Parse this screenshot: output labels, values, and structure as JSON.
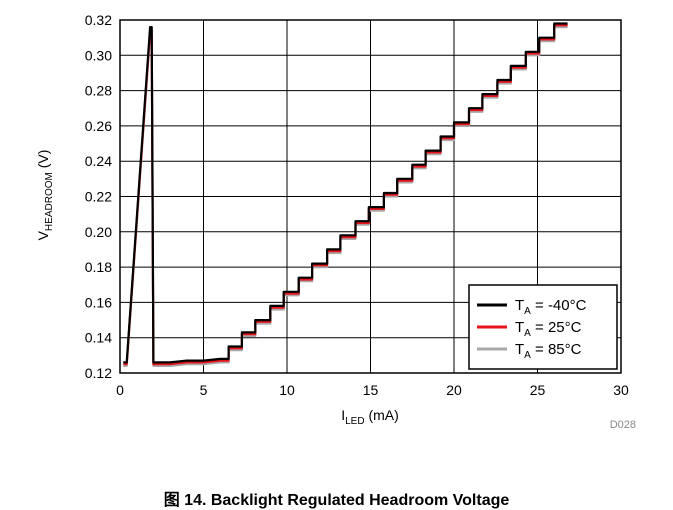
{
  "caption": "图 14. Backlight Regulated Headroom Voltage",
  "figure_id": "D028",
  "colors": {
    "axis": "#000000",
    "grid": "#000000",
    "series_-40": "#000000",
    "series_25": "#e8141c",
    "series_85": "#a8a8a8"
  },
  "chart_data": {
    "type": "line",
    "title": "",
    "xlabel": {
      "main": "I",
      "sub": "LED",
      "unit": " (mA)"
    },
    "ylabel": {
      "main": "V",
      "sub": "HEADROOM",
      "unit": " (V)"
    },
    "xlim": [
      0,
      30
    ],
    "ylim": [
      0.12,
      0.32
    ],
    "x_ticks": [
      "0",
      "5",
      "10",
      "15",
      "20",
      "25",
      "30"
    ],
    "y_ticks": [
      "0.12",
      "0.14",
      "0.16",
      "0.18",
      "0.20",
      "0.22",
      "0.24",
      "0.26",
      "0.28",
      "0.30",
      "0.32"
    ],
    "grid": true,
    "legend_position": "bottom-right",
    "legend": [
      {
        "prefix": "T",
        "sub": "A",
        "suffix": " = -40°C",
        "color": "#000000"
      },
      {
        "prefix": "T",
        "sub": "A",
        "suffix": " = 25°C",
        "color": "#e8141c"
      },
      {
        "prefix": "T",
        "sub": "A",
        "suffix": " = 85°C",
        "color": "#a8a8a8"
      }
    ],
    "series": [
      {
        "name": "TA = -40°C",
        "color": "#000000",
        "points": [
          [
            0.2,
            0.126
          ],
          [
            0.4,
            0.126
          ],
          [
            1.8,
            0.316
          ],
          [
            1.9,
            0.316
          ],
          [
            2.0,
            0.126
          ],
          [
            3.0,
            0.126
          ],
          [
            4.0,
            0.127
          ],
          [
            5.0,
            0.127
          ],
          [
            6.0,
            0.128
          ],
          [
            6.5,
            0.128
          ],
          [
            6.5,
            0.135
          ],
          [
            7.3,
            0.135
          ],
          [
            7.3,
            0.143
          ],
          [
            8.1,
            0.143
          ],
          [
            8.1,
            0.15
          ],
          [
            9.0,
            0.15
          ],
          [
            9.0,
            0.158
          ],
          [
            9.8,
            0.158
          ],
          [
            9.8,
            0.166
          ],
          [
            10.7,
            0.166
          ],
          [
            10.7,
            0.174
          ],
          [
            11.5,
            0.174
          ],
          [
            11.5,
            0.182
          ],
          [
            12.4,
            0.182
          ],
          [
            12.4,
            0.19
          ],
          [
            13.2,
            0.19
          ],
          [
            13.2,
            0.198
          ],
          [
            14.1,
            0.198
          ],
          [
            14.1,
            0.206
          ],
          [
            14.9,
            0.206
          ],
          [
            14.9,
            0.214
          ],
          [
            15.8,
            0.214
          ],
          [
            15.8,
            0.222
          ],
          [
            16.6,
            0.222
          ],
          [
            16.6,
            0.23
          ],
          [
            17.5,
            0.23
          ],
          [
            17.5,
            0.238
          ],
          [
            18.3,
            0.238
          ],
          [
            18.3,
            0.246
          ],
          [
            19.2,
            0.246
          ],
          [
            19.2,
            0.254
          ],
          [
            20.0,
            0.254
          ],
          [
            20.0,
            0.262
          ],
          [
            20.9,
            0.262
          ],
          [
            20.9,
            0.27
          ],
          [
            21.7,
            0.27
          ],
          [
            21.7,
            0.278
          ],
          [
            22.6,
            0.278
          ],
          [
            22.6,
            0.286
          ],
          [
            23.4,
            0.286
          ],
          [
            23.4,
            0.294
          ],
          [
            24.3,
            0.294
          ],
          [
            24.3,
            0.302
          ],
          [
            25.1,
            0.302
          ],
          [
            25.1,
            0.31
          ],
          [
            26.0,
            0.31
          ],
          [
            26.0,
            0.318
          ],
          [
            26.8,
            0.318
          ]
        ]
      },
      {
        "name": "TA = 25°C",
        "color": "#e8141c",
        "points": [
          [
            0.2,
            0.125
          ],
          [
            0.4,
            0.125
          ],
          [
            1.8,
            0.314
          ],
          [
            1.9,
            0.314
          ],
          [
            2.0,
            0.125
          ],
          [
            3.0,
            0.125
          ],
          [
            4.0,
            0.126
          ],
          [
            5.0,
            0.126
          ],
          [
            6.0,
            0.127
          ],
          [
            6.5,
            0.127
          ],
          [
            6.5,
            0.134
          ],
          [
            7.3,
            0.134
          ],
          [
            7.3,
            0.142
          ],
          [
            8.1,
            0.142
          ],
          [
            8.1,
            0.149
          ],
          [
            9.0,
            0.149
          ],
          [
            9.0,
            0.157
          ],
          [
            9.8,
            0.157
          ],
          [
            9.8,
            0.165
          ],
          [
            10.7,
            0.165
          ],
          [
            10.7,
            0.173
          ],
          [
            11.5,
            0.173
          ],
          [
            11.5,
            0.181
          ],
          [
            12.4,
            0.181
          ],
          [
            12.4,
            0.189
          ],
          [
            13.2,
            0.189
          ],
          [
            13.2,
            0.197
          ],
          [
            14.1,
            0.197
          ],
          [
            14.1,
            0.205
          ],
          [
            14.9,
            0.205
          ],
          [
            14.9,
            0.213
          ],
          [
            15.8,
            0.213
          ],
          [
            15.8,
            0.221
          ],
          [
            16.6,
            0.221
          ],
          [
            16.6,
            0.229
          ],
          [
            17.5,
            0.229
          ],
          [
            17.5,
            0.237
          ],
          [
            18.3,
            0.237
          ],
          [
            18.3,
            0.245
          ],
          [
            19.2,
            0.245
          ],
          [
            19.2,
            0.253
          ],
          [
            20.0,
            0.253
          ],
          [
            20.0,
            0.261
          ],
          [
            20.9,
            0.261
          ],
          [
            20.9,
            0.269
          ],
          [
            21.7,
            0.269
          ],
          [
            21.7,
            0.277
          ],
          [
            22.6,
            0.277
          ],
          [
            22.6,
            0.285
          ],
          [
            23.4,
            0.285
          ],
          [
            23.4,
            0.293
          ],
          [
            24.3,
            0.293
          ],
          [
            24.3,
            0.301
          ],
          [
            25.1,
            0.301
          ],
          [
            25.1,
            0.309
          ],
          [
            26.0,
            0.309
          ],
          [
            26.0,
            0.317
          ],
          [
            26.8,
            0.317
          ]
        ]
      },
      {
        "name": "TA = 85°C",
        "color": "#a8a8a8",
        "points": [
          [
            0.2,
            0.124
          ],
          [
            0.4,
            0.124
          ],
          [
            1.8,
            0.312
          ],
          [
            1.9,
            0.312
          ],
          [
            2.0,
            0.124
          ],
          [
            3.0,
            0.124
          ],
          [
            4.0,
            0.125
          ],
          [
            5.0,
            0.125
          ],
          [
            6.0,
            0.126
          ],
          [
            6.5,
            0.126
          ],
          [
            6.5,
            0.133
          ],
          [
            7.3,
            0.133
          ],
          [
            7.3,
            0.141
          ],
          [
            8.1,
            0.141
          ],
          [
            8.1,
            0.148
          ],
          [
            9.0,
            0.148
          ],
          [
            9.0,
            0.156
          ],
          [
            9.8,
            0.156
          ],
          [
            9.8,
            0.164
          ],
          [
            10.7,
            0.164
          ],
          [
            10.7,
            0.172
          ],
          [
            11.5,
            0.172
          ],
          [
            11.5,
            0.18
          ],
          [
            12.4,
            0.18
          ],
          [
            12.4,
            0.188
          ],
          [
            13.2,
            0.188
          ],
          [
            13.2,
            0.196
          ],
          [
            14.1,
            0.196
          ],
          [
            14.1,
            0.204
          ],
          [
            14.9,
            0.204
          ],
          [
            14.9,
            0.212
          ],
          [
            15.8,
            0.212
          ],
          [
            15.8,
            0.22
          ],
          [
            16.6,
            0.22
          ],
          [
            16.6,
            0.228
          ],
          [
            17.5,
            0.228
          ],
          [
            17.5,
            0.236
          ],
          [
            18.3,
            0.236
          ],
          [
            18.3,
            0.244
          ],
          [
            19.2,
            0.244
          ],
          [
            19.2,
            0.252
          ],
          [
            20.0,
            0.252
          ],
          [
            20.0,
            0.26
          ],
          [
            20.9,
            0.26
          ],
          [
            20.9,
            0.268
          ],
          [
            21.7,
            0.268
          ],
          [
            21.7,
            0.276
          ],
          [
            22.6,
            0.276
          ],
          [
            22.6,
            0.284
          ],
          [
            23.4,
            0.284
          ],
          [
            23.4,
            0.292
          ],
          [
            24.3,
            0.292
          ],
          [
            24.3,
            0.3
          ],
          [
            25.1,
            0.3
          ],
          [
            25.1,
            0.308
          ],
          [
            26.0,
            0.308
          ],
          [
            26.0,
            0.316
          ],
          [
            26.8,
            0.316
          ]
        ]
      }
    ]
  }
}
